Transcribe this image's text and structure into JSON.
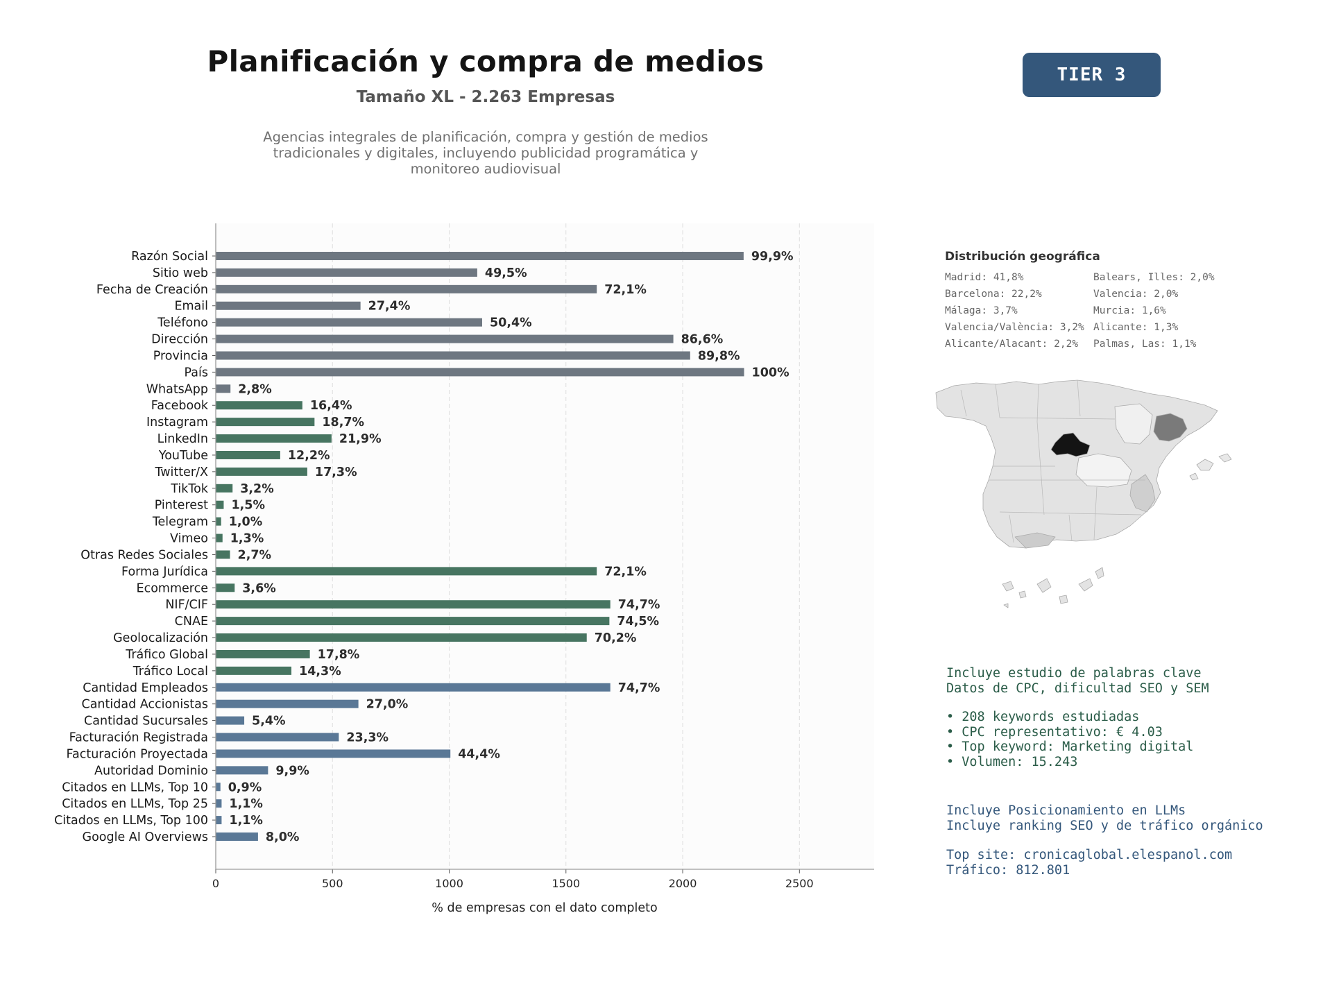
{
  "header": {
    "title": "Planificación y compra de medios",
    "subtitle": "Tamaño XL - 2.263 Empresas",
    "description_lines": [
      "Agencias integrales de planificación, compra y gestión de medios",
      "tradicionales y digitales, incluyendo publicidad programática y",
      "monitoreo audiovisual"
    ],
    "badge": "TIER 3"
  },
  "colors": {
    "gray": "#6e7781",
    "green": "#477561",
    "blue": "#5a7896",
    "badge": "#34577b",
    "seo_text": "#2a5c48",
    "llm_text": "#34577b"
  },
  "chart_data": {
    "type": "bar",
    "orientation": "horizontal",
    "xlabel": "% de empresas con el dato completo",
    "xlim": [
      0,
      2820
    ],
    "xticks": [
      0,
      500,
      1000,
      1500,
      2000,
      2500
    ],
    "grid": "vertical dashed",
    "categories": [
      "Razón Social",
      "Sitio web",
      "Fecha de Creación",
      "Email",
      "Teléfono",
      "Dirección",
      "Provincia",
      "País",
      "WhatsApp",
      "Facebook",
      "Instagram",
      "LinkedIn",
      "YouTube",
      "Twitter/X",
      "TikTok",
      "Pinterest",
      "Telegram",
      "Vimeo",
      "Otras Redes Sociales",
      "Forma Jurídica",
      "Ecommerce",
      "NIF/CIF",
      "CNAE",
      "Geolocalización",
      "Tráfico Global",
      "Tráfico Local",
      "Cantidad Empleados",
      "Cantidad Accionistas",
      "Cantidad Sucursales",
      "Facturación Registrada",
      "Facturación Proyectada",
      "Autoridad Dominio",
      "Citados en LLMs, Top 10",
      "Citados en LLMs, Top 25",
      "Citados en LLMs, Top 100",
      "Google AI Overviews"
    ],
    "values": [
      2261,
      1120,
      1632,
      620,
      1141,
      1960,
      2032,
      2263,
      63,
      371,
      423,
      496,
      276,
      392,
      72,
      34,
      23,
      29,
      61,
      1632,
      81,
      1690,
      1686,
      1589,
      403,
      324,
      1690,
      611,
      122,
      527,
      1005,
      224,
      20,
      25,
      25,
      181
    ],
    "data_labels": [
      "99,9%",
      "49,5%",
      "72,1%",
      "27,4%",
      "50,4%",
      "86,6%",
      "89,8%",
      "100%",
      "2,8%",
      "16,4%",
      "18,7%",
      "21,9%",
      "12,2%",
      "17,3%",
      "3,2%",
      "1,5%",
      "1,0%",
      "1,3%",
      "2,7%",
      "72,1%",
      "3,6%",
      "74,7%",
      "74,5%",
      "70,2%",
      "17,8%",
      "14,3%",
      "74,7%",
      "27,0%",
      "5,4%",
      "23,3%",
      "44,4%",
      "9,9%",
      "0,9%",
      "1,1%",
      "1,1%",
      "8,0%"
    ],
    "bar_colors": [
      "gray",
      "gray",
      "gray",
      "gray",
      "gray",
      "gray",
      "gray",
      "gray",
      "gray",
      "green",
      "green",
      "green",
      "green",
      "green",
      "green",
      "green",
      "green",
      "green",
      "green",
      "green",
      "green",
      "green",
      "green",
      "green",
      "green",
      "green",
      "blue",
      "blue",
      "blue",
      "blue",
      "blue",
      "blue",
      "blue",
      "blue",
      "blue",
      "blue"
    ]
  },
  "geo": {
    "title": "Distribución geográfica",
    "left_column": [
      "Madrid: 41,8%",
      "Barcelona: 22,2%",
      "Málaga: 3,7%",
      "Valencia/València: 3,2%",
      "Alicante/Alacant: 2,2%"
    ],
    "right_column": [
      "Balears, Illes: 2,0%",
      "Valencia: 2,0%",
      "Murcia: 1,6%",
      "Alicante: 1,3%",
      "Palmas, Las: 1,1%"
    ]
  },
  "seo": {
    "line1": "Incluye estudio de palabras clave",
    "line2": "Datos de CPC, dificultad SEO y SEM",
    "bullet1": "• 208 keywords estudiadas",
    "bullet2": "• CPC representativo: € 4.03",
    "bullet3": "• Top keyword: Marketing digital",
    "bullet4": "• Volumen: 15.243"
  },
  "llm": {
    "line1": "Incluye Posicionamiento en LLMs",
    "line2": "Incluye ranking SEO y de tráfico orgánico",
    "line3": "Top site: cronicaglobal.elespanol.com",
    "line4": "Tráfico: 812.801"
  }
}
